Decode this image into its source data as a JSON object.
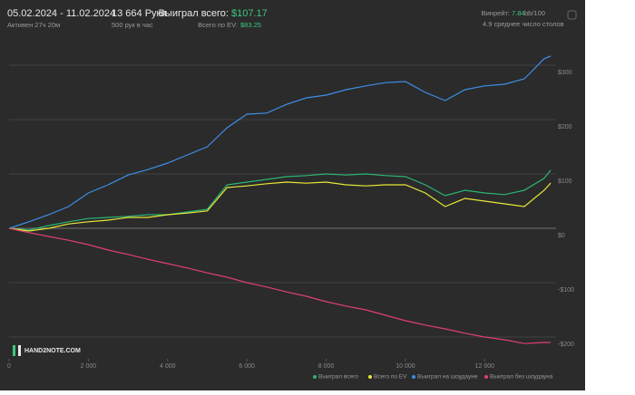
{
  "header": {
    "date_range": "05.02.2024 - 11.02.2024",
    "active": "Активен 27ч 20м",
    "hands": "13 664 Руки",
    "hands_per_hour": "500 рук в час",
    "won_label": "Выиграл всего:",
    "won_value": "$107.17",
    "ev_label": "Всего по EV:",
    "ev_value": "$83.25",
    "winrate_label": "Винрейт:",
    "winrate_value": "7.84",
    "winrate_unit": "bb/100",
    "tables": "4.9 среднее число столов",
    "logo": "HAND2NOTE.COM"
  },
  "chart_data": {
    "type": "line",
    "x": [
      0,
      500,
      1000,
      1500,
      2000,
      2500,
      3000,
      3500,
      4000,
      4500,
      5000,
      5500,
      6000,
      6500,
      7000,
      7500,
      8000,
      8500,
      9000,
      9500,
      10000,
      10500,
      11000,
      11500,
      12000,
      12500,
      13000,
      13500,
      13664
    ],
    "series": [
      {
        "name": "Выиграл всего",
        "color": "#2bb673",
        "values": [
          0,
          -3,
          5,
          12,
          18,
          20,
          22,
          25,
          25,
          30,
          35,
          80,
          85,
          90,
          95,
          97,
          100,
          98,
          100,
          97,
          95,
          80,
          60,
          70,
          65,
          62,
          70,
          92,
          107.17
        ]
      },
      {
        "name": "Всего по EV",
        "color": "#e8e83a",
        "values": [
          0,
          -5,
          0,
          8,
          12,
          15,
          20,
          20,
          25,
          28,
          32,
          75,
          78,
          82,
          85,
          83,
          85,
          80,
          78,
          80,
          80,
          65,
          40,
          55,
          50,
          45,
          40,
          70,
          83.25
        ]
      },
      {
        "name": "Выиграл на шоудауне",
        "color": "#3d8ee8",
        "values": [
          0,
          12,
          25,
          40,
          65,
          80,
          98,
          108,
          120,
          135,
          150,
          185,
          210,
          212,
          228,
          240,
          245,
          255,
          262,
          268,
          270,
          250,
          235,
          255,
          262,
          265,
          275,
          312,
          317
        ]
      },
      {
        "name": "Выиграл без шоудауна",
        "color": "#e0406e",
        "values": [
          0,
          -8,
          -15,
          -22,
          -30,
          -40,
          -48,
          -57,
          -65,
          -73,
          -82,
          -90,
          -100,
          -108,
          -117,
          -125,
          -135,
          -143,
          -150,
          -160,
          -170,
          -178,
          -185,
          -193,
          -200,
          -205,
          -212,
          -210,
          -210
        ]
      }
    ],
    "xlim": [
      0,
      13800
    ],
    "ylim": [
      -240,
      345
    ],
    "xticks": [
      0,
      {
        "value": 2000,
        "label": "2 000"
      },
      {
        "value": 4000,
        "label": "4 000"
      },
      {
        "value": 6000,
        "label": "6 000"
      },
      {
        "value": 8000,
        "label": "8 000"
      },
      {
        "value": 10000,
        "label": "10 000"
      },
      {
        "value": 12000,
        "label": "12 000"
      }
    ],
    "yticks": [
      {
        "value": -200,
        "label": "-$200"
      },
      {
        "value": -100,
        "label": "-$100"
      },
      {
        "value": 0,
        "label": "$0"
      },
      {
        "value": 100,
        "label": "$100"
      },
      {
        "value": 200,
        "label": "$200"
      },
      {
        "value": 300,
        "label": "$300"
      }
    ],
    "grid": true
  }
}
